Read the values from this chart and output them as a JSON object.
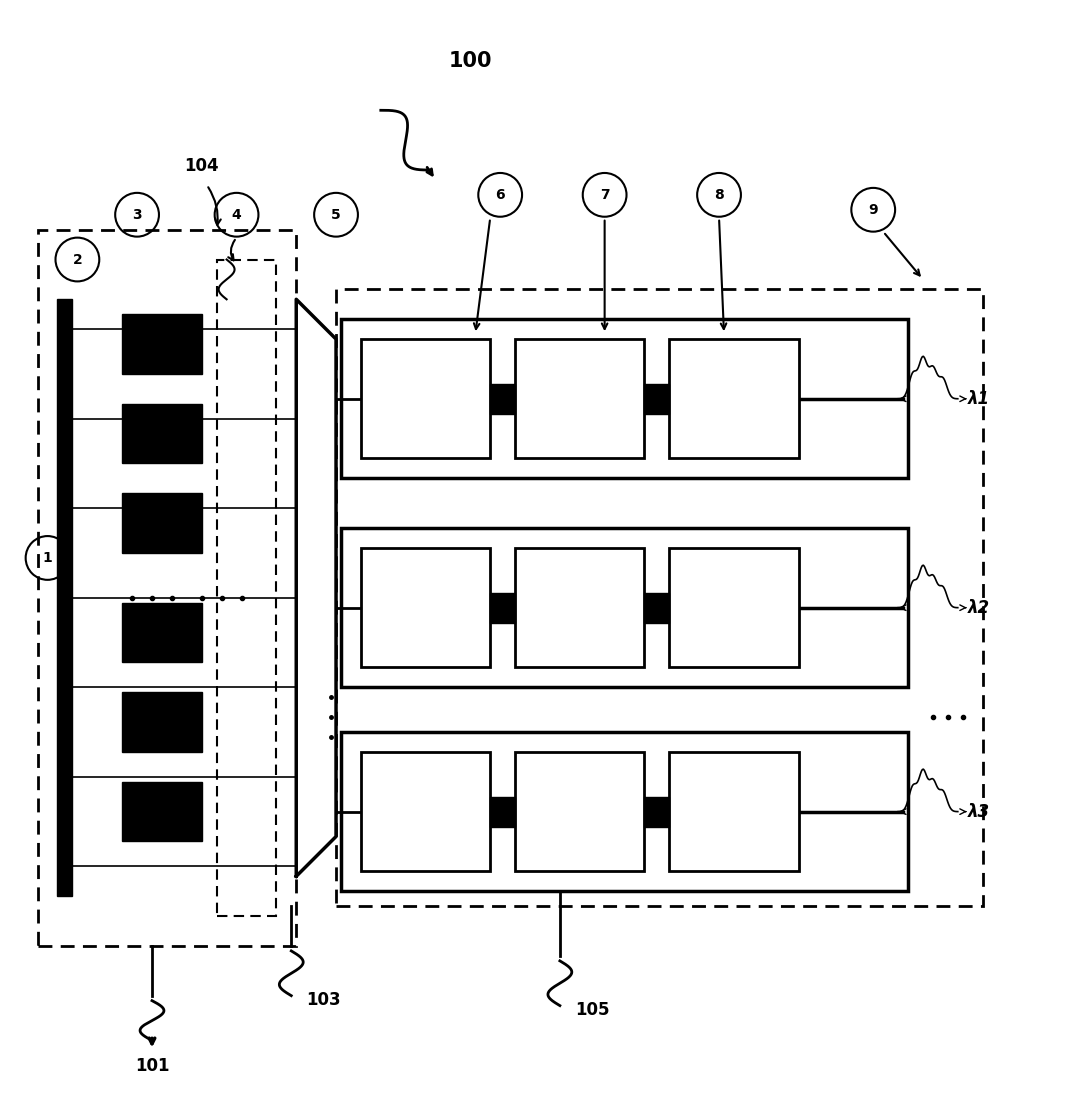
{
  "bg_color": "#ffffff",
  "label_100": "100",
  "label_101": "101",
  "label_103": "103",
  "label_104": "104",
  "label_105": "105",
  "lambda_labels": [
    "λ1",
    "λ2",
    "λ3"
  ]
}
